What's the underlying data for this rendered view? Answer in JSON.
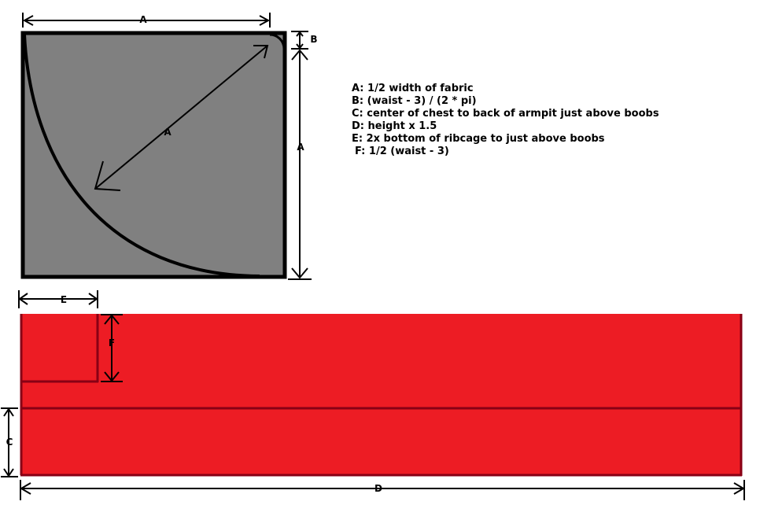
{
  "diagram": {
    "labels": {
      "a_top": "A",
      "a_diagonal": "A",
      "a_right": "A",
      "b": "B",
      "c": "C",
      "d": "D",
      "e": "E",
      "f": "F"
    },
    "legend": [
      "A: 1/2 width of fabric",
      "B: (waist - 3) / (2 * pi)",
      "C: center of chest to back of armpit just above boobs",
      "D: height x 1.5",
      "E: 2x bottom of ribcage to just above boobs",
      "F: 1/2 (waist - 3)"
    ],
    "colors": {
      "square_fill": "#808080",
      "rect_fill": "#ed1c24",
      "rect_edge": "#880015",
      "line": "#000000",
      "background": "#ffffff"
    }
  }
}
